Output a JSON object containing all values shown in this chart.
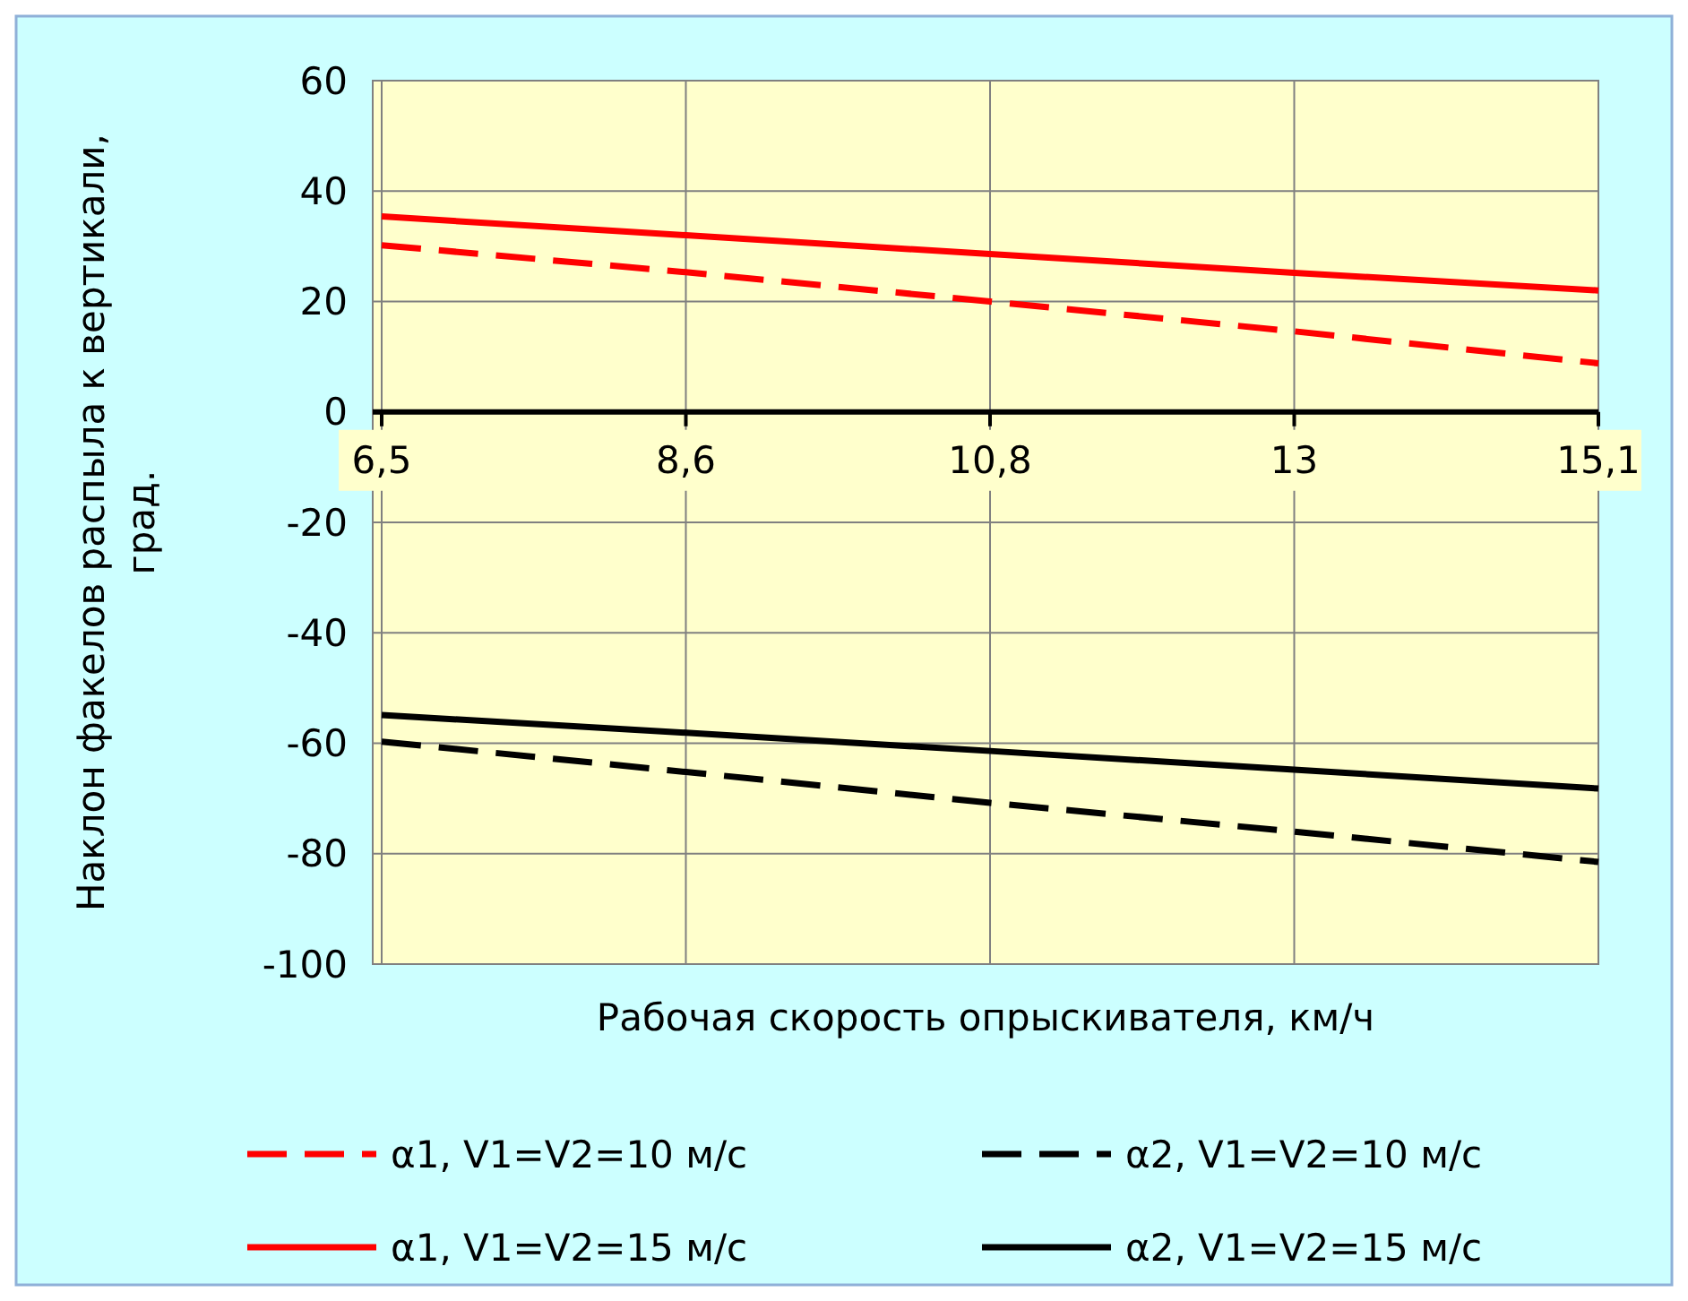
{
  "chart_data": {
    "type": "line",
    "xlabel": "Рабочая скорость опрыскивателя, км/ч",
    "ylabel": "Наклон факелов распыла к вертикали, град.",
    "categories": [
      "6,5",
      "8,6",
      "10,8",
      "13",
      "15,1"
    ],
    "ylim": [
      -100,
      60
    ],
    "yticks": [
      -100,
      -80,
      -60,
      -40,
      -20,
      0,
      20,
      40,
      60
    ],
    "grid": true,
    "legend": "bottom",
    "series": [
      {
        "name": "α1, V1=V2=10 м/с",
        "color": "#ff0000",
        "line_style": "dashed",
        "values": [
          30.2,
          25.3,
          20,
          14.6,
          8.8
        ]
      },
      {
        "name": "α2, V1=V2=10 м/с",
        "color": "#000000",
        "line_style": "dashed",
        "values": [
          -59.7,
          -65.2,
          -70.8,
          -76,
          -81.5
        ]
      },
      {
        "name": "α1, V1=V2=15 м/с",
        "color": "#ff0000",
        "line_style": "solid",
        "values": [
          35.4,
          32,
          28.6,
          25.2,
          22
        ]
      },
      {
        "name": "α2, V1=V2=15 м/с",
        "color": "#000000",
        "line_style": "solid",
        "values": [
          -54.9,
          -58.1,
          -61.4,
          -64.8,
          -68.2
        ]
      }
    ]
  }
}
